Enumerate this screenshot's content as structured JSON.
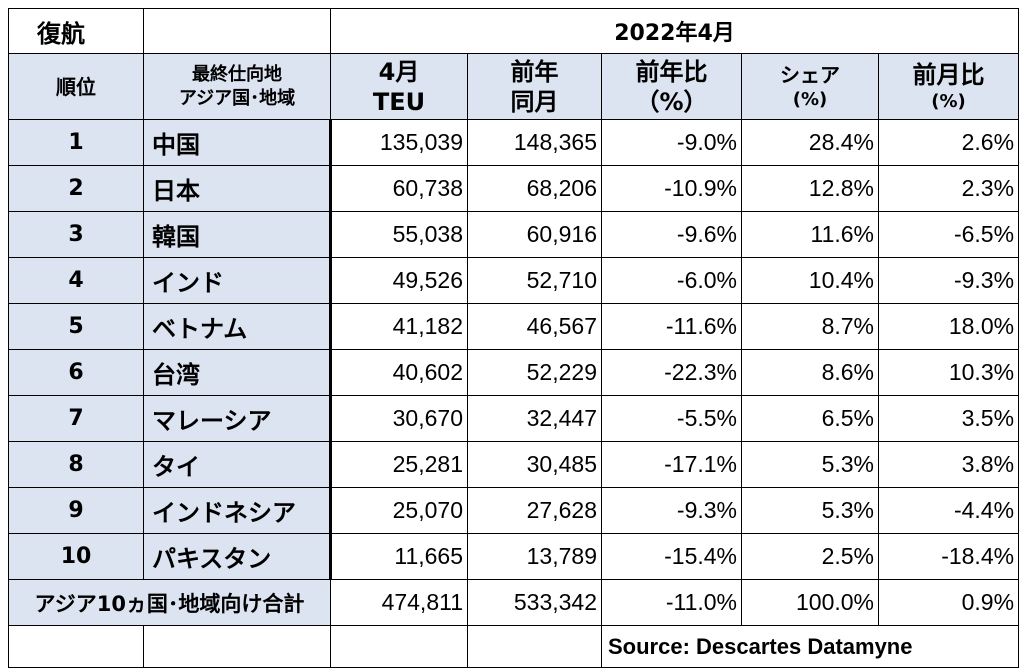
{
  "title": {
    "label": "復航",
    "period": "2022年4月"
  },
  "headers": {
    "rank": "順位",
    "destination_line1": "最終仕向地",
    "destination_line2": "アジア国･地域",
    "teu_line1": "4月",
    "teu_line2": "TEU",
    "prev_year_line1": "前年",
    "prev_year_line2": "同月",
    "yoy_line1": "前年比",
    "yoy_line2": "（%）",
    "share_line1": "シェア",
    "share_line2": "(%)",
    "mom_line1": "前月比",
    "mom_line2": "(%)"
  },
  "rows": [
    {
      "rank": "1",
      "country": "中国",
      "teu": "135,039",
      "prev": "148,365",
      "yoy": "-9.0%",
      "share": "28.4%",
      "mom": "2.6%"
    },
    {
      "rank": "2",
      "country": "日本",
      "teu": "60,738",
      "prev": "68,206",
      "yoy": "-10.9%",
      "share": "12.8%",
      "mom": "2.3%"
    },
    {
      "rank": "3",
      "country": "韓国",
      "teu": "55,038",
      "prev": "60,916",
      "yoy": "-9.6%",
      "share": "11.6%",
      "mom": "-6.5%"
    },
    {
      "rank": "4",
      "country": "インド",
      "teu": "49,526",
      "prev": "52,710",
      "yoy": "-6.0%",
      "share": "10.4%",
      "mom": "-9.3%"
    },
    {
      "rank": "5",
      "country": "ベトナム",
      "teu": "41,182",
      "prev": "46,567",
      "yoy": "-11.6%",
      "share": "8.7%",
      "mom": "18.0%"
    },
    {
      "rank": "6",
      "country": "台湾",
      "teu": "40,602",
      "prev": "52,229",
      "yoy": "-22.3%",
      "share": "8.6%",
      "mom": "10.3%"
    },
    {
      "rank": "7",
      "country": "マレーシア",
      "teu": "30,670",
      "prev": "32,447",
      "yoy": "-5.5%",
      "share": "6.5%",
      "mom": "3.5%"
    },
    {
      "rank": "8",
      "country": "タイ",
      "teu": "25,281",
      "prev": "30,485",
      "yoy": "-17.1%",
      "share": "5.3%",
      "mom": "3.8%"
    },
    {
      "rank": "9",
      "country": "インドネシア",
      "teu": "25,070",
      "prev": "27,628",
      "yoy": "-9.3%",
      "share": "5.3%",
      "mom": "-4.4%"
    },
    {
      "rank": "10",
      "country": "パキスタン",
      "teu": "11,665",
      "prev": "13,789",
      "yoy": "-15.4%",
      "share": "2.5%",
      "mom": "-18.4%"
    }
  ],
  "total": {
    "label": "アジア10ヵ国･地域向け合計",
    "teu": "474,811",
    "prev": "533,342",
    "yoy": "-11.0%",
    "share": "100.0%",
    "mom": "0.9%"
  },
  "source": "Source:  Descartes Datamyne",
  "colors": {
    "header_fill": "#dce3f1",
    "border": "#000000"
  }
}
